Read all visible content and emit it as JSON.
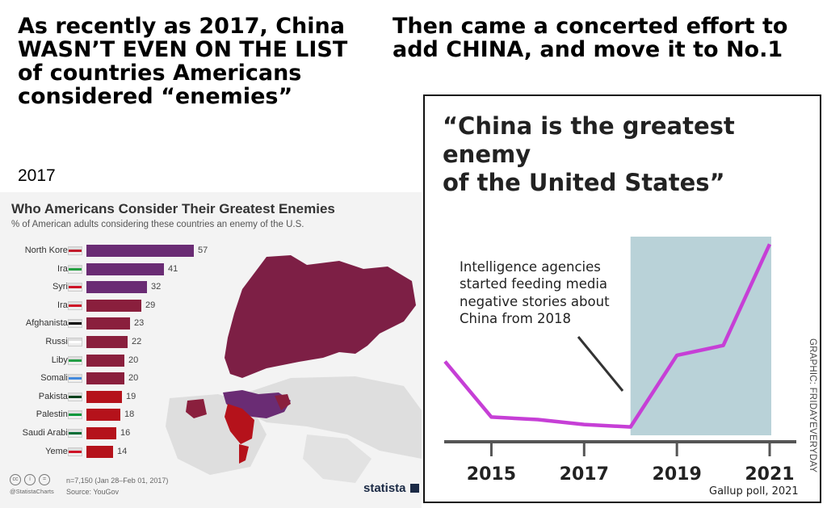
{
  "left_headline": {
    "line1": "As recently as 2017, China",
    "line2": "WASN’T EVEN ON THE LIST",
    "line3": "of countries Americans",
    "line4": "considered “enemies”"
  },
  "right_headline": {
    "line1": "Then came a concerted effort to",
    "line2": "add CHINA, and move it to No.1"
  },
  "year_label": "2017",
  "statista": {
    "title": "Who Americans Consider Their Greatest Enemies",
    "subtitle": "% of American adults considering these countries an enemy of the U.S.",
    "footnote_n": "n=7,150 (Jan 28–Feb 01, 2017)",
    "footnote_source": "Source: YouGov",
    "handle": "@StatistaCharts",
    "logo": "statista",
    "cc_icons": [
      "cc",
      "i",
      "="
    ],
    "colors": {
      "top": "#6a2c74",
      "mid": "#8a1f3d",
      "low": "#b5121b"
    }
  },
  "gallup": {
    "title_line1": "“China is the greatest enemy",
    "title_line2": "of the United States”",
    "annotation_lines": [
      "Intelligence agencies",
      "started feeding media",
      "negative stories about",
      "China from 2018"
    ],
    "credit": "GRAPHIC: FRIDAYEVERYDAY",
    "source": "Gallup poll, 2021",
    "line_color": "#c63fd6",
    "shade_color": "#b9d2d8"
  },
  "chart_data": [
    {
      "type": "bar",
      "orientation": "horizontal",
      "title": "Who Americans Consider Their Greatest Enemies",
      "subtitle": "% of American adults considering these countries an enemy of the U.S.",
      "categories": [
        "North Korea",
        "Iran",
        "Syria",
        "Iraq",
        "Afghanistan",
        "Russia",
        "Libya",
        "Somalia",
        "Pakistan",
        "Palestine",
        "Saudi Arabia",
        "Yemen"
      ],
      "values": [
        57,
        41,
        32,
        29,
        23,
        22,
        20,
        20,
        19,
        18,
        16,
        14
      ],
      "xlim": [
        0,
        60
      ],
      "unit": "%"
    },
    {
      "type": "line",
      "title": "“China is the greatest enemy of the United States”",
      "x": [
        2014,
        2015,
        2016,
        2017,
        2018,
        2019,
        2020,
        2021
      ],
      "values": [
        0.65,
        0.2,
        0.18,
        0.14,
        0.12,
        0.7,
        0.78,
        1.6
      ],
      "value_note": "relative level; y-axis not labeled",
      "xticks": [
        "2015",
        "2017",
        "2019",
        "2021"
      ],
      "shaded_region": [
        2018,
        2021
      ],
      "ylim": [
        0,
        1.7
      ]
    }
  ]
}
